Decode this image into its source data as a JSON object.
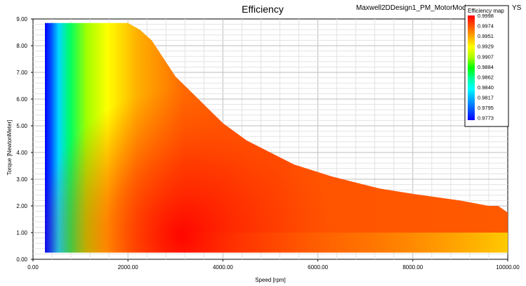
{
  "chart_data": {
    "type": "heatmap",
    "title": "Efficiency",
    "subtitle": "Maxwell2DDesign1_PM_MotorMode",
    "subtitle_tail": "YS",
    "xlabel": "Speed [rpm]",
    "ylabel": "Torque [NewtonMeter]",
    "xlim": [
      0,
      10000
    ],
    "ylim": [
      0,
      9
    ],
    "x_ticks": [
      0,
      2000,
      4000,
      6000,
      8000,
      10000
    ],
    "x_tick_labels": [
      "0.00",
      "2000.00",
      "4000.00",
      "6000.00",
      "8000.00",
      "10000.00"
    ],
    "y_ticks": [
      0,
      1,
      2,
      3,
      4,
      5,
      6,
      7,
      8,
      9
    ],
    "y_tick_labels": [
      "0.00",
      "1.00",
      "2.00",
      "3.00",
      "4.00",
      "5.00",
      "6.00",
      "7.00",
      "8.00",
      "9.00"
    ],
    "grid": true,
    "legend_position": "top-right",
    "legend": {
      "title": "Efficiency map",
      "values": [
        "0.9998",
        "0.9974",
        "0.9951",
        "0.9929",
        "0.9907",
        "0.9884",
        "0.9862",
        "0.9840",
        "0.9817",
        "0.9795",
        "0.9773"
      ],
      "colors": [
        "#ff0000",
        "#ff5500",
        "#ffaa00",
        "#ffff00",
        "#aaff00",
        "#00ff00",
        "#00ff99",
        "#00ffff",
        "#00aaff",
        "#0055ff",
        "#0000ff"
      ]
    },
    "domain": {
      "x_start": 250,
      "min_torque": 0.25,
      "envelope": [
        [
          250,
          8.85
        ],
        [
          2000,
          8.85
        ],
        [
          2250,
          8.6
        ],
        [
          2500,
          8.2
        ],
        [
          3000,
          6.85
        ],
        [
          4000,
          5.1
        ],
        [
          4500,
          4.45
        ],
        [
          5500,
          3.55
        ],
        [
          6300,
          3.1
        ],
        [
          7300,
          2.65
        ],
        [
          8000,
          2.45
        ],
        [
          9000,
          2.2
        ],
        [
          9600,
          2.0
        ],
        [
          9800,
          2.0
        ],
        [
          10000,
          1.75
        ]
      ]
    },
    "regions": [
      {
        "efficiency": 0.9773,
        "x": [
          250,
          380
        ],
        "y": [
          7.6,
          8.85
        ]
      },
      {
        "efficiency": 0.9884,
        "x": [
          250,
          600
        ],
        "y": [
          5.0,
          8.85
        ]
      },
      {
        "efficiency": 0.9929,
        "x": [
          600,
          1300
        ],
        "y": [
          2.5,
          8.85
        ]
      },
      {
        "efficiency": 0.9998,
        "x": [
          1500,
          3500
        ],
        "y": [
          0.5,
          2.0
        ]
      },
      {
        "efficiency": 0.9951,
        "x": [
          8000,
          10000
        ],
        "y": [
          0.25,
          0.6
        ]
      }
    ]
  }
}
